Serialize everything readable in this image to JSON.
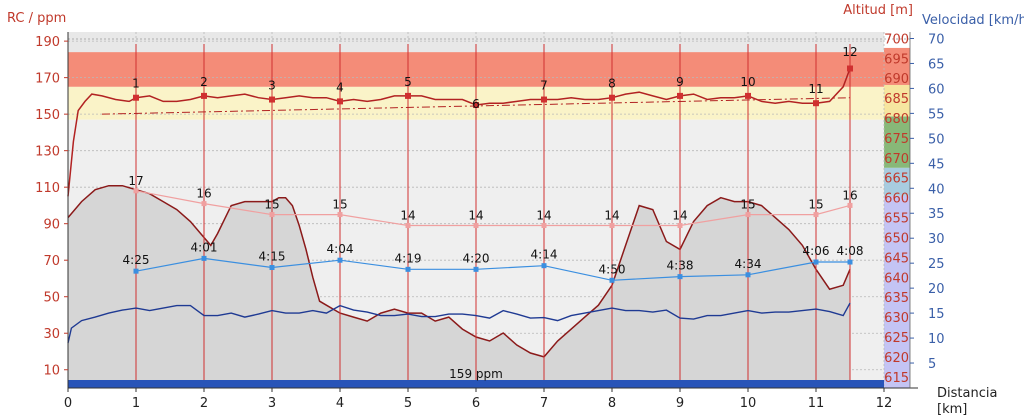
{
  "chart_data": {
    "type": "line",
    "left_axis_title": "RC / ppm",
    "altitude_axis_title": "Altitud [m]",
    "speed_axis_title": "Velocidad [km/h]",
    "x_axis_title": "Distancia",
    "x_axis_unit": "[km]",
    "x_range": [
      0,
      12
    ],
    "x_ticks": [
      "0",
      "1",
      "2",
      "3",
      "4",
      "5",
      "6",
      "7",
      "8",
      "9",
      "10",
      "11",
      "12"
    ],
    "hr_range": [
      0,
      195
    ],
    "hr_ticks": [
      "10",
      "30",
      "50",
      "70",
      "90",
      "110",
      "130",
      "150",
      "170",
      "190"
    ],
    "altitude_range": [
      612.2,
      701.6
    ],
    "altitude_ticks": [
      "615",
      "620",
      "625",
      "630",
      "635",
      "640",
      "645",
      "650",
      "655",
      "660",
      "665",
      "670",
      "675",
      "680",
      "685",
      "690",
      "695",
      "700"
    ],
    "speed_range": [
      0,
      71.3
    ],
    "speed_ticks": [
      "5",
      "10",
      "15",
      "20",
      "25",
      "30",
      "35",
      "40",
      "45",
      "50",
      "55",
      "60",
      "65",
      "70"
    ],
    "grid": true,
    "colors": {
      "hr": "#b22222",
      "altitude": "#8b1a1a",
      "speed": "#1f3a93",
      "pace": "#3b8fe0",
      "cadence": "#f0a0a0",
      "marker": "#d03030",
      "avg_bar": "#2854b8"
    },
    "hr_zones": [
      {
        "from": 0,
        "to": 147,
        "color": "#efefef"
      },
      {
        "from": 147,
        "to": 165,
        "color": "#faf3c8"
      },
      {
        "from": 165,
        "to": 184,
        "color": "#f48c78"
      },
      {
        "from": 184,
        "to": 195,
        "color": "#e8e8e8"
      }
    ],
    "altitude_zones": [
      {
        "from": 612.2,
        "to": 660.5,
        "color": "#c4c4f4"
      },
      {
        "from": 660.5,
        "to": 667.5,
        "color": "#a8cce0"
      },
      {
        "from": 667.5,
        "to": 680.4,
        "color": "#88b878"
      },
      {
        "from": 680.4,
        "to": 688.3,
        "color": "#f6e6a0"
      },
      {
        "from": 688.3,
        "to": 697.6,
        "color": "#f48c78"
      }
    ],
    "km_markers": [
      "1",
      "2",
      "3",
      "4",
      "5",
      "6",
      "7",
      "8",
      "9",
      "10",
      "11",
      "12"
    ],
    "heart_rate": {
      "x": [
        0,
        0.08,
        0.15,
        0.25,
        0.35,
        0.5,
        0.7,
        0.9,
        1.0,
        1.2,
        1.4,
        1.6,
        1.8,
        2.0,
        2.2,
        2.4,
        2.6,
        2.8,
        3.0,
        3.2,
        3.4,
        3.6,
        3.8,
        4.0,
        4.2,
        4.4,
        4.6,
        4.8,
        5.0,
        5.2,
        5.4,
        5.6,
        5.8,
        6.0,
        6.2,
        6.4,
        6.6,
        6.8,
        7.0,
        7.2,
        7.4,
        7.6,
        7.8,
        8.0,
        8.2,
        8.4,
        8.6,
        8.8,
        9.0,
        9.2,
        9.4,
        9.6,
        9.8,
        10.0,
        10.2,
        10.4,
        10.6,
        10.8,
        11.0,
        11.2,
        11.4,
        11.5
      ],
      "y": [
        105,
        135,
        152,
        157,
        161,
        160,
        158,
        157,
        159,
        160,
        157,
        157,
        158,
        160,
        159,
        160,
        161,
        159,
        158,
        159,
        160,
        159,
        159,
        157,
        158,
        157,
        158,
        160,
        160,
        160,
        158,
        158,
        158,
        155,
        156,
        156,
        157,
        158,
        158,
        158,
        159,
        158,
        158,
        159,
        161,
        162,
        160,
        158,
        160,
        161,
        158,
        159,
        159,
        160,
        157,
        156,
        157,
        156,
        156,
        157,
        165,
        175
      ]
    },
    "hr_trend": {
      "x": [
        0.5,
        11.5
      ],
      "y": [
        150,
        159
      ]
    },
    "altitude": {
      "x": [
        0,
        0.2,
        0.4,
        0.6,
        0.8,
        1.0,
        1.2,
        1.4,
        1.6,
        1.8,
        2.0,
        2.1,
        2.2,
        2.4,
        2.6,
        2.8,
        3.0,
        3.1,
        3.2,
        3.3,
        3.4,
        3.5,
        3.6,
        3.7,
        3.8,
        4.0,
        4.2,
        4.4,
        4.6,
        4.8,
        5.0,
        5.2,
        5.4,
        5.6,
        5.8,
        6.0,
        6.2,
        6.4,
        6.6,
        6.8,
        7.0,
        7.2,
        7.4,
        7.6,
        7.8,
        8.0,
        8.2,
        8.4,
        8.6,
        8.8,
        9.0,
        9.2,
        9.4,
        9.6,
        9.8,
        10.0,
        10.2,
        10.4,
        10.6,
        10.8,
        11.0,
        11.2,
        11.4,
        11.5
      ],
      "y": [
        655,
        659,
        662,
        663,
        663,
        662,
        661,
        659,
        657,
        654,
        650,
        648,
        651,
        658,
        659,
        659,
        659,
        660,
        660,
        658,
        653,
        647,
        640,
        634,
        633,
        631,
        630,
        629,
        631,
        632,
        631,
        631,
        629,
        630,
        627,
        625,
        624,
        626,
        623,
        621,
        620,
        624,
        627,
        630,
        633,
        638,
        648,
        658,
        657,
        649,
        647,
        654,
        658,
        660,
        659,
        659,
        658,
        655,
        652,
        648,
        642,
        637,
        638,
        642
      ]
    },
    "speed": {
      "x": [
        0,
        0.05,
        0.2,
        0.4,
        0.6,
        0.8,
        1.0,
        1.2,
        1.4,
        1.6,
        1.8,
        2.0,
        2.2,
        2.4,
        2.6,
        2.8,
        3.0,
        3.2,
        3.4,
        3.6,
        3.8,
        4.0,
        4.2,
        4.4,
        4.6,
        4.8,
        5.0,
        5.2,
        5.4,
        5.6,
        5.8,
        6.0,
        6.2,
        6.4,
        6.6,
        6.8,
        7.0,
        7.2,
        7.4,
        7.6,
        7.8,
        8.0,
        8.2,
        8.4,
        8.6,
        8.8,
        9.0,
        9.2,
        9.4,
        9.6,
        9.8,
        10.0,
        10.2,
        10.4,
        10.6,
        10.8,
        11.0,
        11.2,
        11.4,
        11.5
      ],
      "y": [
        9,
        12,
        13.5,
        14.2,
        15,
        15.6,
        16,
        15.5,
        16,
        16.5,
        16.5,
        14.5,
        14.5,
        15,
        14.2,
        14.8,
        15.5,
        15,
        15,
        15.5,
        15,
        16.5,
        15.6,
        15.2,
        14.5,
        14.5,
        14.8,
        14.3,
        14.3,
        14.8,
        14.8,
        14.5,
        14,
        15.5,
        14.8,
        14,
        14.1,
        13.5,
        14.5,
        15,
        15.5,
        16,
        15.5,
        15.5,
        15.2,
        15.6,
        14,
        13.8,
        14.5,
        14.5,
        15,
        15.5,
        15,
        15.2,
        15.2,
        15.5,
        15.8,
        15.3,
        14.5,
        17
      ]
    },
    "pace": {
      "x": [
        1,
        2,
        3,
        4,
        5,
        6,
        7,
        8,
        9,
        10,
        11,
        11.5
      ],
      "y": [
        64,
        71,
        66,
        70,
        65,
        65,
        67,
        59,
        61,
        62,
        69,
        69
      ],
      "labels": [
        "4:25",
        "4:01",
        "4:15",
        "4:04",
        "4:19",
        "4:20",
        "4:14",
        "4:50",
        "4:38",
        "4:34",
        "4:06",
        "4:08"
      ]
    },
    "cadence": {
      "x": [
        1,
        2,
        3,
        4,
        5,
        6,
        7,
        8,
        9,
        10,
        11,
        11.5
      ],
      "y": [
        108,
        101,
        95,
        95,
        89,
        89,
        89,
        89,
        89,
        95,
        95,
        100
      ],
      "labels": [
        "17",
        "16",
        "15",
        "15",
        "14",
        "14",
        "14",
        "14",
        "14",
        "15",
        "15",
        "16"
      ]
    },
    "avg_hr_label": "159 ppm"
  }
}
